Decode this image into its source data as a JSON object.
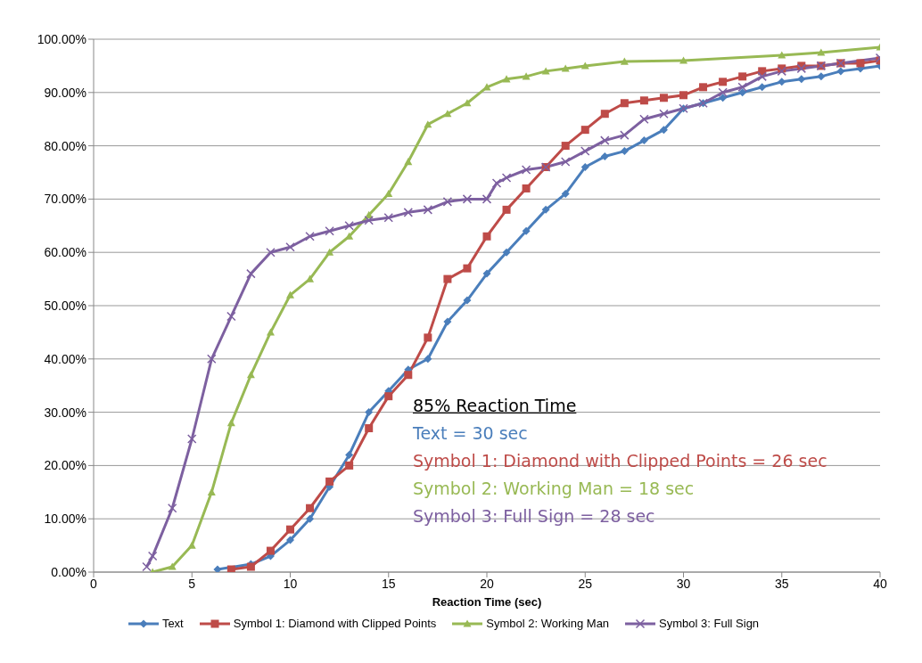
{
  "chart_data": {
    "type": "line",
    "xlabel": "Reaction Time (sec)",
    "xlim": [
      0,
      40
    ],
    "xticks": [
      0,
      5,
      10,
      15,
      20,
      25,
      30,
      35,
      40
    ],
    "ylim": [
      0,
      100
    ],
    "yticks": [
      {
        "value": 0,
        "label": "0.00%"
      },
      {
        "value": 10,
        "label": "10.00%"
      },
      {
        "value": 20,
        "label": "20.00%"
      },
      {
        "value": 30,
        "label": "30.00%"
      },
      {
        "value": 40,
        "label": "40.00%"
      },
      {
        "value": 50,
        "label": "50.00%"
      },
      {
        "value": 60,
        "label": "60.00%"
      },
      {
        "value": 70,
        "label": "70.00%"
      },
      {
        "value": 80,
        "label": "80.00%"
      },
      {
        "value": 90,
        "label": "90.00%"
      },
      {
        "value": 100,
        "label": "100.00%"
      }
    ],
    "grid": "y",
    "legend": "bottom",
    "line_style": "solid",
    "annotations": [
      "85% Reaction Time",
      "Text = 30 sec",
      "Symbol 1: Diamond with Clipped Points = 26 sec",
      "Symbol 2: Working Man = 18 sec",
      "Symbol 3: Full Sign = 28 sec"
    ],
    "series": [
      {
        "name": "Text",
        "color": "#4a7ebb",
        "marker": "diamond",
        "x": [
          6.3,
          8,
          9,
          10,
          11,
          12,
          13,
          14,
          15,
          16,
          17,
          18,
          19,
          20,
          21,
          22,
          23,
          24,
          25,
          26,
          27,
          28,
          29,
          30,
          31,
          32,
          33,
          34,
          35,
          36,
          37,
          38,
          39,
          40
        ],
        "values": [
          0.5,
          1.5,
          3,
          6,
          10,
          16,
          22,
          30,
          34,
          38,
          40,
          47,
          51,
          56,
          60,
          64,
          68,
          71,
          76,
          78,
          79,
          81,
          83,
          87,
          88,
          89,
          90,
          91,
          92,
          92.5,
          93,
          94,
          94.5,
          95
        ]
      },
      {
        "name": "Symbol 1: Diamond  with Clipped Points",
        "color": "#be4b48",
        "marker": "square",
        "x": [
          7,
          8,
          9,
          10,
          11,
          12,
          13,
          14,
          15,
          16,
          17,
          18,
          19,
          20,
          21,
          22,
          23,
          24,
          25,
          26,
          27,
          28,
          29,
          30,
          31,
          32,
          33,
          34,
          35,
          36,
          37,
          38,
          39,
          40
        ],
        "values": [
          0.5,
          1,
          4,
          8,
          12,
          17,
          20,
          27,
          33,
          37,
          44,
          55,
          57,
          63,
          68,
          72,
          76,
          80,
          83,
          86,
          88,
          88.5,
          89,
          89.5,
          91,
          92,
          93,
          94,
          94.5,
          95,
          95,
          95.5,
          95.5,
          96
        ]
      },
      {
        "name": "Symbol 2: Working Man",
        "color": "#98b954",
        "marker": "triangle",
        "x": [
          3,
          4,
          5,
          6,
          7,
          8,
          9,
          10,
          11,
          12,
          13,
          14,
          15,
          16,
          17,
          18,
          19,
          20,
          21,
          22,
          23,
          24,
          25,
          27,
          30,
          35,
          37,
          40
        ],
        "values": [
          0,
          1,
          5,
          15,
          28,
          37,
          45,
          52,
          55,
          60,
          63,
          67,
          71,
          77,
          84,
          86,
          88,
          91,
          92.5,
          93,
          94,
          94.5,
          95,
          95.8,
          96,
          97,
          97.5,
          98.5
        ]
      },
      {
        "name": "Symbol 3: Full Sign",
        "color": "#7d60a0",
        "marker": "cross",
        "x": [
          2.7,
          3,
          4,
          5,
          6,
          7,
          8,
          9,
          10,
          11,
          12,
          13,
          14,
          15,
          16,
          17,
          18,
          19,
          20,
          20.5,
          21,
          22,
          23,
          24,
          25,
          26,
          27,
          28,
          29,
          30,
          31,
          32,
          33,
          34,
          35,
          36,
          37,
          38,
          40
        ],
        "values": [
          1,
          3,
          12,
          25,
          40,
          48,
          56,
          60,
          61,
          63,
          64,
          65,
          66,
          66.5,
          67.5,
          68,
          69.5,
          70,
          70,
          73,
          74,
          75.5,
          76,
          77,
          79,
          81,
          82,
          85,
          86,
          87,
          88,
          90,
          91,
          93,
          94,
          94.5,
          95,
          95.5,
          96.5
        ]
      }
    ]
  }
}
